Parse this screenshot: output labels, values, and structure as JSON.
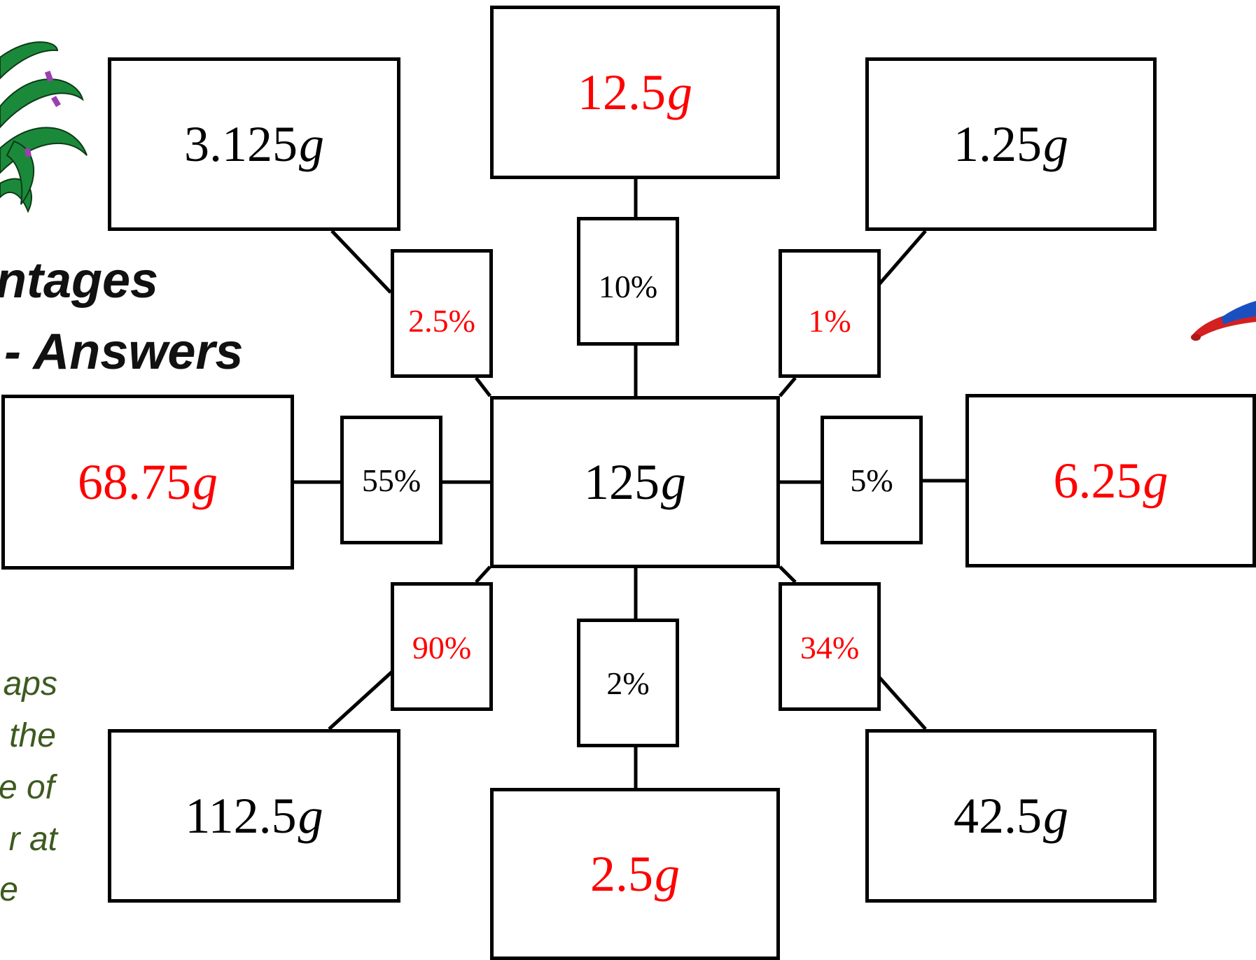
{
  "title": {
    "line1": "ntages",
    "line2": "- Answers"
  },
  "side_note": {
    "lines": [
      "aps",
      "the",
      "e of",
      "r at",
      "e"
    ]
  },
  "center": {
    "number": "125",
    "unit": "g",
    "color": "#000000"
  },
  "nodes": [
    {
      "id": "top",
      "number": "12.5",
      "unit": "g",
      "answer": true,
      "percent": "10%",
      "percent_answer": false
    },
    {
      "id": "top-right",
      "number": "1.25",
      "unit": "g",
      "answer": false,
      "percent": "1%",
      "percent_answer": true
    },
    {
      "id": "right",
      "number": "6.25",
      "unit": "g",
      "answer": true,
      "percent": "5%",
      "percent_answer": false
    },
    {
      "id": "bottom-right",
      "number": "42.5",
      "unit": "g",
      "answer": false,
      "percent": "34%",
      "percent_answer": true
    },
    {
      "id": "bottom",
      "number": "2.5",
      "unit": "g",
      "answer": true,
      "percent": "2%",
      "percent_answer": false
    },
    {
      "id": "bottom-left",
      "number": "112.5",
      "unit": "g",
      "answer": false,
      "percent": "90%",
      "percent_answer": true
    },
    {
      "id": "left",
      "number": "68.75",
      "unit": "g",
      "answer": true,
      "percent": "55%",
      "percent_answer": false
    },
    {
      "id": "top-left",
      "number": "3.125",
      "unit": "g",
      "answer": false,
      "percent": "2.5%",
      "percent_answer": true
    }
  ],
  "colors": {
    "answer": "#ff0000",
    "given": "#000000",
    "side_note_text": "#3d5a1f",
    "plant_leaf": "#1a8a3a",
    "plant_band": "#9b3fb0",
    "figure_red": "#d42020",
    "figure_blue": "#1a4fc0"
  },
  "decorations": {
    "top_left": "plant-leaves-icon",
    "right": "flying-superhero-icon"
  }
}
